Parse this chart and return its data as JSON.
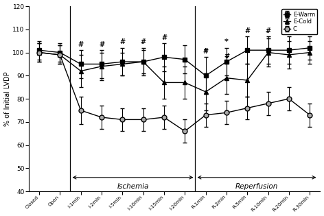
{
  "x_labels": [
    "Closed",
    "Open",
    "I-1min",
    "I-2min",
    "I-5min",
    "I-10min",
    "I-15min",
    "I-20min",
    "R-1min",
    "R-2min",
    "R-5min",
    "R-10min",
    "R-20min",
    "R-30min"
  ],
  "x_positions": [
    0,
    1,
    2,
    3,
    4,
    5,
    6,
    7,
    8,
    9,
    10,
    11,
    12,
    13
  ],
  "E_Warm_y": [
    101,
    100,
    95,
    95,
    96,
    96,
    98,
    97,
    90,
    96,
    101,
    101,
    101,
    102
  ],
  "E_Warm_err": [
    4,
    4,
    6,
    6,
    6,
    6,
    6,
    6,
    8,
    6,
    6,
    6,
    6,
    5
  ],
  "E_Cold_y": [
    100,
    99,
    92,
    94,
    95,
    96,
    87,
    87,
    83,
    89,
    88,
    100,
    99,
    100
  ],
  "E_Cold_err": [
    4,
    4,
    7,
    6,
    5,
    5,
    7,
    7,
    8,
    7,
    7,
    6,
    6,
    5
  ],
  "C_y": [
    100,
    99,
    75,
    72,
    71,
    71,
    72,
    66,
    73,
    74,
    76,
    78,
    80,
    73
  ],
  "C_err": [
    4,
    4,
    6,
    5,
    5,
    5,
    5,
    5,
    5,
    5,
    5,
    5,
    5,
    5
  ],
  "hash_EWarm_idx": [
    2,
    3,
    4,
    5,
    6,
    8,
    10,
    11,
    12,
    13
  ],
  "star_idx": [
    8,
    9
  ],
  "hash_C_idx": [
    9
  ],
  "ischemia_vline_x": 1.5,
  "reperfusion_vline_x": 7.5,
  "ylim": [
    40,
    120
  ],
  "yticks": [
    40,
    50,
    60,
    70,
    80,
    90,
    100,
    110,
    120
  ],
  "ylabel": "% of Initial LVDP",
  "bg_color": "#ffffff"
}
